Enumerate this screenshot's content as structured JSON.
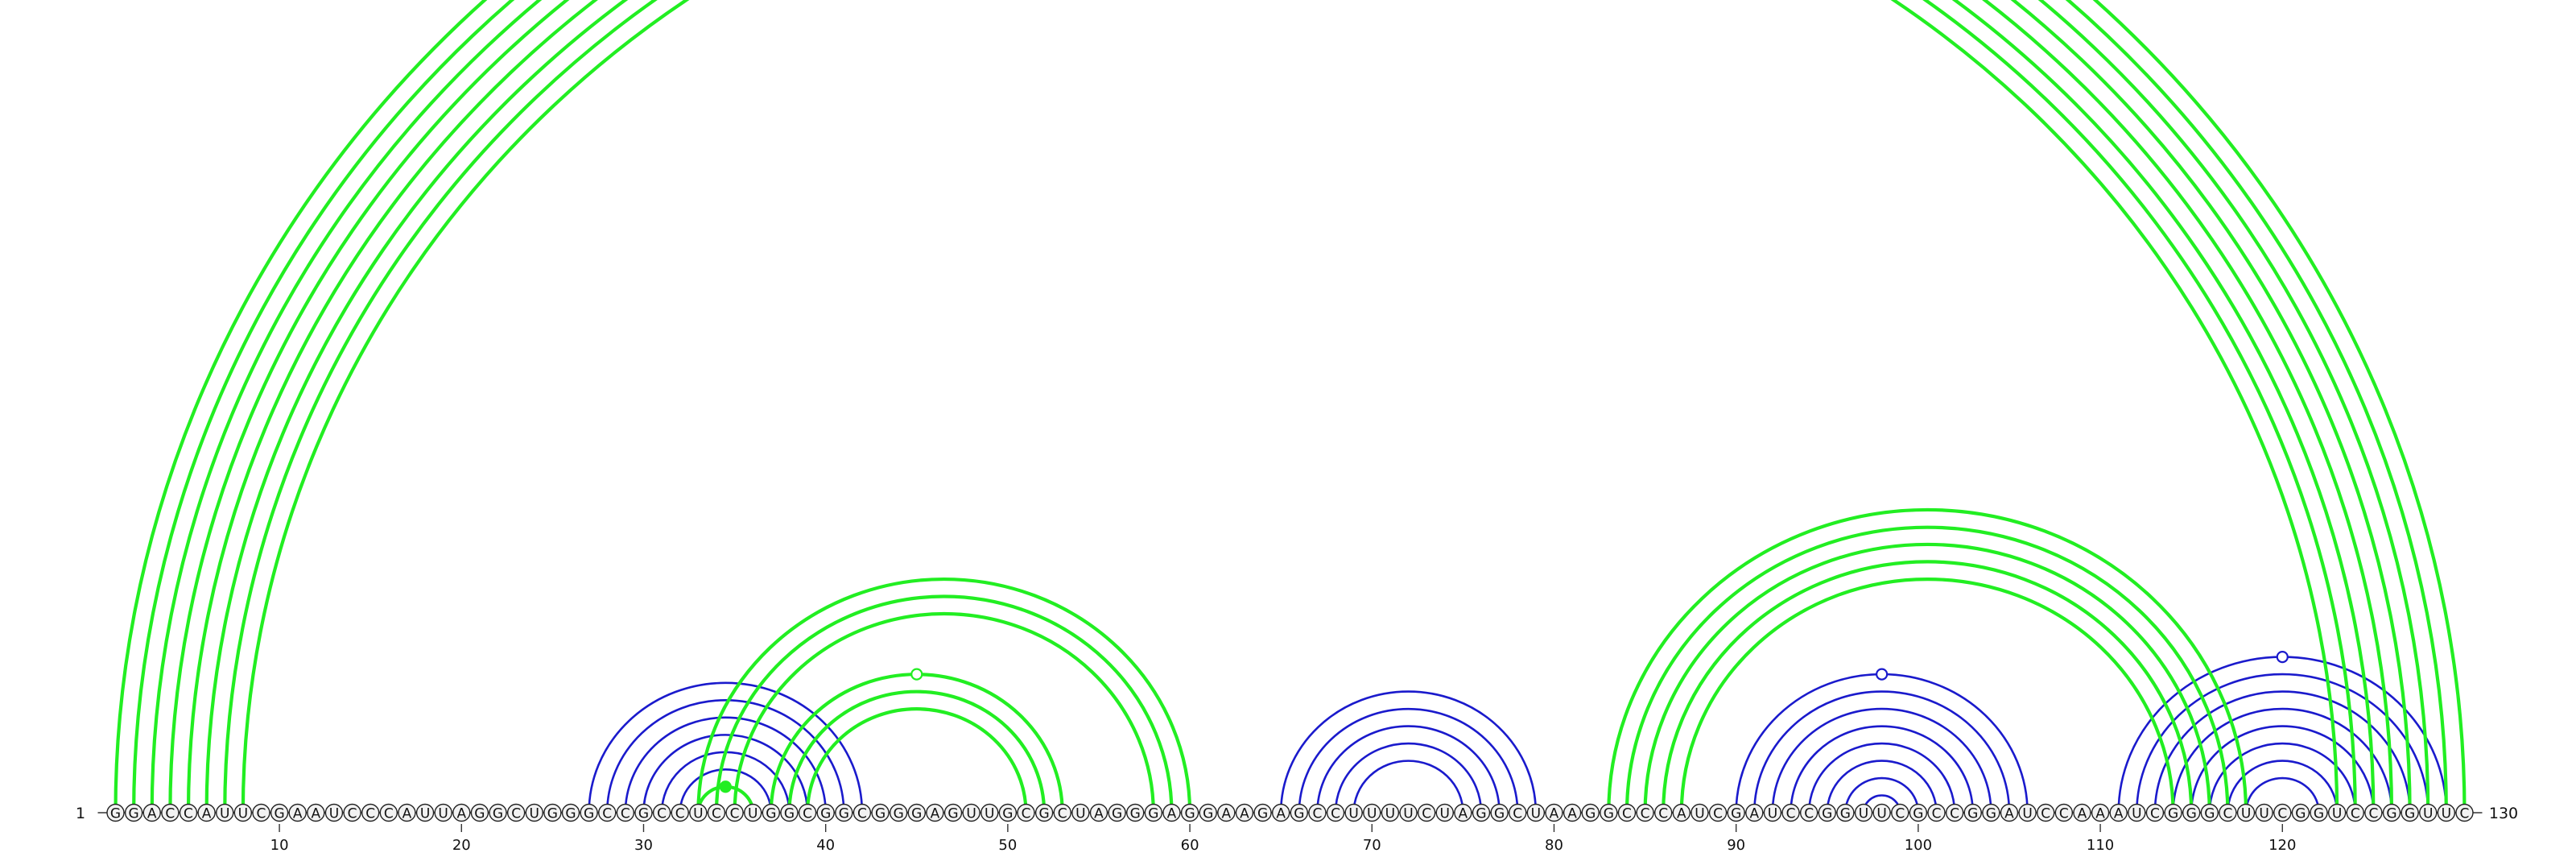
{
  "sequence": {
    "nucleotides": "GGACCAUUCGAAUCCCAUUAGGCUGGGCCGCCUCCUGGCGGCGGGAGUUGCGCUAGGGAGGAAGAGCCUUUUCUAGGCUAAGGCCCAUCGAUCCGGUUCGCCGGAUCCAAAUCGGGCUUCGGUCCGGUUC",
    "length": 130,
    "start_label": "1",
    "end_label": "130",
    "tick_labels": [
      "10",
      "20",
      "30",
      "40",
      "50",
      "60",
      "70",
      "80",
      "90",
      "100",
      "110",
      "120"
    ]
  },
  "colors": {
    "green_arc": "#22ee22",
    "blue_arc": "#1a1acc",
    "circle_fill": "#f2f2f2",
    "circle_stroke": "#222222",
    "text": "#111111"
  },
  "green_helices": [
    {
      "pairs": [
        [
          1,
          130
        ],
        [
          2,
          129
        ]
      ],
      "marker": "open-circle"
    },
    {
      "pairs": [
        [
          3,
          128
        ],
        [
          4,
          127
        ]
      ]
    },
    {
      "pairs": [
        [
          5,
          126
        ],
        [
          6,
          125
        ]
      ]
    },
    {
      "pairs": [
        [
          7,
          124
        ],
        [
          8,
          123
        ]
      ]
    },
    {
      "pairs": [
        [
          33,
          60
        ],
        [
          34,
          59
        ],
        [
          35,
          58
        ]
      ]
    },
    {
      "pairs": [
        [
          37,
          53
        ],
        [
          38,
          52
        ],
        [
          39,
          51
        ]
      ],
      "marker": "open-circle"
    },
    {
      "pairs": [
        [
          33,
          36
        ]
      ],
      "marker": "filled-circle"
    },
    {
      "pairs": [
        [
          83,
          118
        ],
        [
          84,
          117
        ],
        [
          85,
          116
        ],
        [
          86,
          115
        ],
        [
          87,
          114
        ]
      ]
    }
  ],
  "blue_helices": [
    {
      "pairs": [
        [
          27,
          42
        ],
        [
          28,
          41
        ],
        [
          29,
          40
        ],
        [
          30,
          39
        ],
        [
          31,
          38
        ],
        [
          32,
          37
        ]
      ]
    },
    {
      "pairs": [
        [
          65,
          79
        ],
        [
          66,
          78
        ],
        [
          67,
          77
        ],
        [
          68,
          76
        ],
        [
          69,
          75
        ]
      ]
    },
    {
      "pairs": [
        [
          90,
          106
        ],
        [
          91,
          105
        ],
        [
          92,
          104
        ],
        [
          93,
          103
        ],
        [
          94,
          102
        ],
        [
          95,
          101
        ],
        [
          96,
          100
        ],
        [
          97,
          99
        ]
      ],
      "marker": "open-circle"
    },
    {
      "pairs": [
        [
          111,
          129
        ],
        [
          112,
          128
        ],
        [
          113,
          127
        ],
        [
          114,
          126
        ],
        [
          115,
          125
        ],
        [
          116,
          124
        ],
        [
          117,
          123
        ],
        [
          118,
          122
        ]
      ],
      "marker": "open-circle"
    }
  ]
}
